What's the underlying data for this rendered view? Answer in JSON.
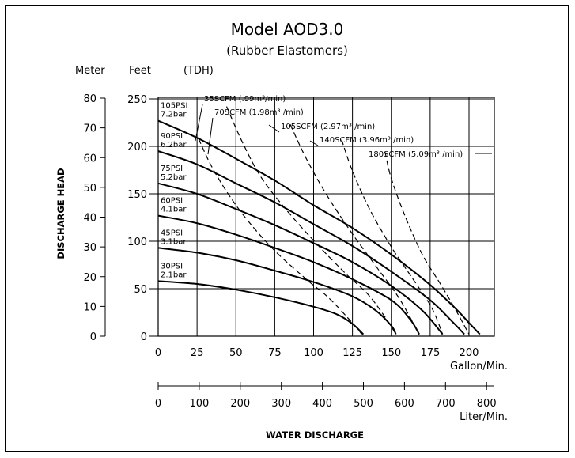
{
  "chart_data": {
    "type": "line",
    "title": "Model AOD3.0",
    "subtitle": "(Rubber Elastomers)",
    "units_header": {
      "meter": "Meter",
      "feet": "Feet",
      "tdh": "(TDH)"
    },
    "ylabel": "DISCHARGE HEAD",
    "xlabel": "WATER DISCHARGE",
    "x_unit_gpm": "Gallon/Min.",
    "x_unit_lpm": "Liter/Min.",
    "x_ticks_gpm": [
      "0",
      "25",
      "50",
      "75",
      "100",
      "125",
      "150",
      "175",
      "200"
    ],
    "x_ticks_lpm": [
      "0",
      "100",
      "200",
      "300",
      "400",
      "500",
      "600",
      "700",
      "800"
    ],
    "y_ticks_meter": [
      "0",
      "10",
      "20",
      "30",
      "40",
      "50",
      "60",
      "70",
      "80"
    ],
    "y_ticks_feet": [
      "0",
      "50",
      "100",
      "150",
      "200",
      "250"
    ],
    "xlim": [
      0,
      210
    ],
    "ylim_feet": [
      0,
      260
    ],
    "grid": true,
    "pressure_curves": [
      {
        "name": "105PSI",
        "name2": "7.2bar",
        "x": [
          0,
          25,
          50,
          75,
          100,
          125,
          150,
          175,
          192,
          200,
          207
        ],
        "y": [
          227,
          209,
          187,
          164,
          138,
          114,
          86,
          54,
          28,
          14,
          2
        ]
      },
      {
        "name": "90PSI",
        "name2": "6.2bar",
        "x": [
          0,
          25,
          50,
          75,
          100,
          125,
          150,
          175,
          190,
          197
        ],
        "y": [
          195,
          181,
          161,
          141,
          118,
          95,
          68,
          38,
          14,
          2
        ]
      },
      {
        "name": "75PSI",
        "name2": "5.2bar",
        "x": [
          0,
          25,
          50,
          75,
          100,
          125,
          150,
          170,
          183
        ],
        "y": [
          161,
          150,
          134,
          117,
          98,
          78,
          53,
          27,
          2
        ]
      },
      {
        "name": "60PSI",
        "name2": "4.1bar",
        "x": [
          0,
          25,
          50,
          75,
          100,
          125,
          150,
          162,
          168
        ],
        "y": [
          127,
          119,
          107,
          93,
          78,
          60,
          38,
          18,
          2
        ]
      },
      {
        "name": "45PSI",
        "name2": "3.1bar",
        "x": [
          0,
          25,
          50,
          75,
          100,
          125,
          140,
          150,
          153
        ],
        "y": [
          93,
          88,
          80,
          69,
          57,
          42,
          27,
          11,
          2
        ]
      },
      {
        "name": "30PSI",
        "name2": "2.1bar",
        "x": [
          0,
          25,
          50,
          75,
          100,
          115,
          125,
          132
        ],
        "y": [
          58,
          55,
          49,
          41,
          31,
          23,
          13,
          2
        ]
      }
    ],
    "air_curves": [
      {
        "label": "35SCFM (.99m³/min)",
        "x": [
          26,
          34,
          45,
          58,
          75,
          96,
          110,
          126,
          131
        ],
        "y": [
          208,
          180,
          150,
          121,
          90,
          59,
          40,
          12,
          2
        ]
      },
      {
        "label": "70SCFM (1.98m³ /min)",
        "x": [
          44,
          54,
          66,
          82,
          101,
          120,
          135,
          146,
          153
        ],
        "y": [
          242,
          205,
          168,
          134,
          99,
          67,
          44,
          20,
          2
        ]
      },
      {
        "label": "105SCFM (2.97m³ /min)",
        "x": [
          85,
          95,
          108,
          124,
          140,
          155,
          168
        ],
        "y": [
          223,
          188,
          150,
          110,
          74,
          40,
          2
        ]
      },
      {
        "label": "140SCFM (3.96m³ /min)",
        "x": [
          118,
          125,
          136,
          150,
          164,
          176,
          183
        ],
        "y": [
          207,
          174,
          134,
          94,
          60,
          30,
          2
        ]
      },
      {
        "label": "180SCFM (5.09m³ /min)",
        "x": [
          146,
          150,
          159,
          170,
          182,
          192,
          200
        ],
        "y": [
          194,
          166,
          126,
          86,
          54,
          26,
          2
        ]
      }
    ]
  }
}
